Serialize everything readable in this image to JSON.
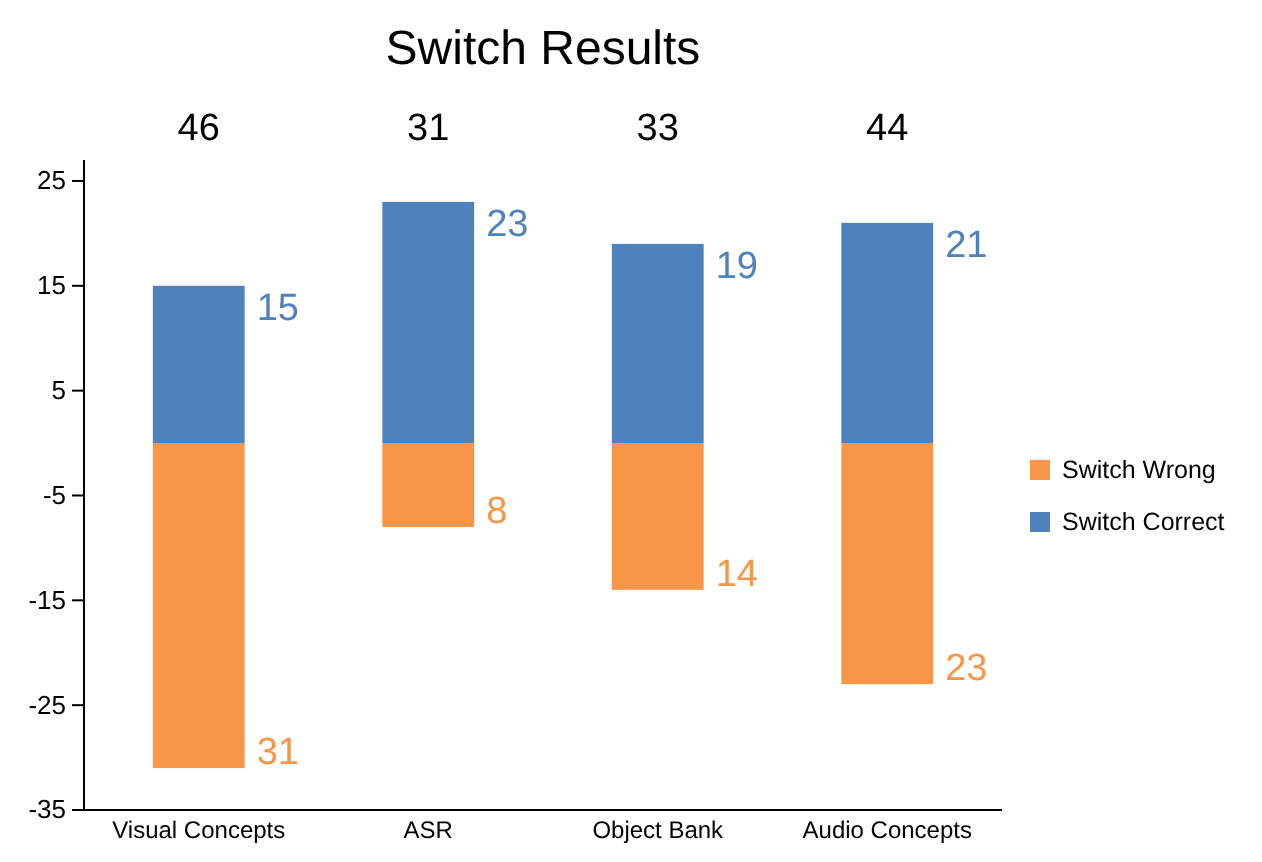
{
  "chart_data": {
    "type": "bar",
    "title": "Switch Results",
    "categories": [
      "Visual Concepts",
      "ASR",
      "Object Bank",
      "Audio Concepts"
    ],
    "series": [
      {
        "name": "Switch Wrong",
        "color": "#f79646",
        "values": [
          31,
          8,
          14,
          23
        ],
        "base": [
          -31,
          -8,
          -14,
          -23
        ],
        "value_labels": [
          "31",
          "8",
          "14",
          "23"
        ]
      },
      {
        "name": "Switch Correct",
        "color": "#4f81bd",
        "values": [
          15,
          23,
          19,
          21
        ],
        "value_labels": [
          "15",
          "23",
          "19",
          "21"
        ]
      }
    ],
    "annotations": [
      "46",
      "31",
      "33",
      "44"
    ],
    "ylim": [
      -35,
      27
    ],
    "yticks": [
      25,
      15,
      5,
      -5,
      -15,
      -25,
      -35
    ],
    "grid": false,
    "legend": "right"
  }
}
